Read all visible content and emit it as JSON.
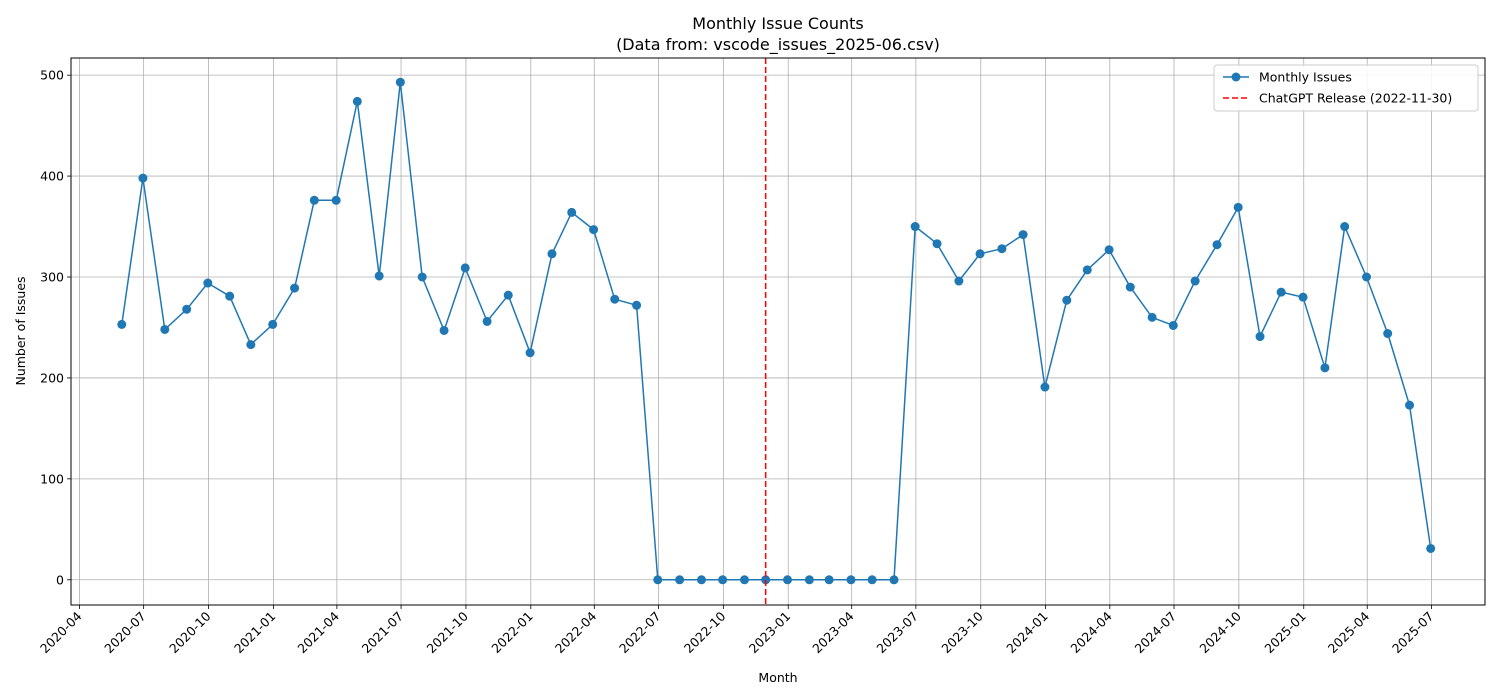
{
  "chart_data": {
    "type": "line",
    "title": "Monthly Issue Counts",
    "subtitle": "(Data from: vscode_issues_2025-06.csv)",
    "xlabel": "Month",
    "ylabel": "Number of Issues",
    "xlim": [
      "2020-03-20",
      "2025-09-15"
    ],
    "ylim": [
      -25,
      517
    ],
    "x_ticks": [
      "2020-04",
      "2020-07",
      "2020-10",
      "2021-01",
      "2021-04",
      "2021-07",
      "2021-10",
      "2022-01",
      "2022-04",
      "2022-07",
      "2022-10",
      "2023-01",
      "2023-04",
      "2023-07",
      "2023-10",
      "2024-01",
      "2024-04",
      "2024-07",
      "2024-10",
      "2025-01",
      "2025-04",
      "2025-07"
    ],
    "y_ticks": [
      0,
      100,
      200,
      300,
      400,
      500
    ],
    "grid": true,
    "legend_position": "top-right",
    "series": [
      {
        "name": "Monthly Issues",
        "color": "#1f77b4",
        "style": "line-marker",
        "x": [
          "2020-05-31",
          "2020-06-30",
          "2020-07-31",
          "2020-08-31",
          "2020-09-30",
          "2020-10-31",
          "2020-11-30",
          "2020-12-31",
          "2021-01-31",
          "2021-02-28",
          "2021-03-31",
          "2021-04-30",
          "2021-05-31",
          "2021-06-30",
          "2021-07-31",
          "2021-08-31",
          "2021-09-30",
          "2021-10-31",
          "2021-11-30",
          "2021-12-31",
          "2022-01-31",
          "2022-02-28",
          "2022-03-31",
          "2022-04-30",
          "2022-05-31",
          "2022-06-30",
          "2022-07-31",
          "2022-08-31",
          "2022-09-30",
          "2022-10-31",
          "2022-11-30",
          "2022-12-31",
          "2023-01-31",
          "2023-02-28",
          "2023-03-31",
          "2023-04-30",
          "2023-05-31",
          "2023-06-30",
          "2023-07-31",
          "2023-08-31",
          "2023-09-30",
          "2023-10-31",
          "2023-11-30",
          "2023-12-31",
          "2024-01-31",
          "2024-02-29",
          "2024-03-31",
          "2024-04-30",
          "2024-05-31",
          "2024-06-30",
          "2024-07-31",
          "2024-08-31",
          "2024-09-30",
          "2024-10-31",
          "2024-11-30",
          "2024-12-31",
          "2025-01-31",
          "2025-02-28",
          "2025-03-31",
          "2025-04-30",
          "2025-05-31",
          "2025-06-30"
        ],
        "values": [
          253,
          398,
          248,
          268,
          294,
          281,
          233,
          253,
          289,
          376,
          376,
          474,
          301,
          493,
          300,
          247,
          309,
          256,
          282,
          225,
          323,
          364,
          347,
          278,
          272,
          0,
          0,
          0,
          0,
          0,
          0,
          0,
          0,
          0,
          0,
          0,
          0,
          350,
          333,
          296,
          323,
          328,
          342,
          191,
          277,
          307,
          327,
          290,
          260,
          252,
          296,
          332,
          369,
          241,
          285,
          280,
          210,
          350,
          300,
          244,
          173,
          31
        ]
      },
      {
        "name": "ChatGPT Release (2022-11-30)",
        "color": "#ff0000",
        "style": "vertical-dashed",
        "x": "2022-11-30"
      }
    ]
  }
}
